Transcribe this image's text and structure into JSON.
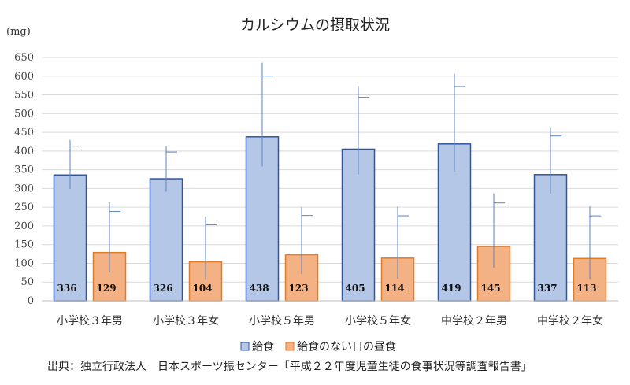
{
  "chart_data": {
    "type": "bar",
    "title": "カルシウムの摂取状況",
    "ylabel": "(mg)",
    "ylim": [
      0,
      650
    ],
    "ytick_step": 50,
    "grid": true,
    "legend_position": "bottom",
    "categories": [
      "小学校３年男",
      "小学校３年女",
      "小学校５年男",
      "小学校５年女",
      "中学校２年男",
      "中学校２年女"
    ],
    "series": [
      {
        "name": "給食",
        "values": [
          336,
          326,
          438,
          405,
          419,
          337
        ],
        "error_plus": [
          94,
          87,
          198,
          169,
          187,
          126
        ],
        "color_fill": "#b4c7e7",
        "color_edge": "#2f55a4"
      },
      {
        "name": "給食のない日の昼食",
        "values": [
          129,
          104,
          123,
          114,
          145,
          113
        ],
        "error_plus": [
          134,
          121,
          128,
          138,
          142,
          139
        ],
        "color_fill": "#f4b183",
        "color_edge": "#e07b28"
      }
    ]
  },
  "source": "出典：独立行政法人　日本スポーツ振センター「平成２２年度児童生徒の食事状況等調査報告書」"
}
